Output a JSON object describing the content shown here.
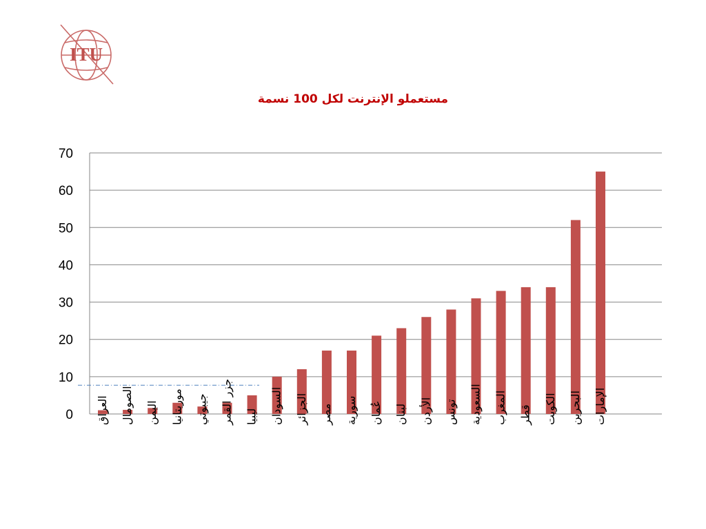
{
  "logo": {
    "text": "ITU"
  },
  "chart_data": {
    "type": "bar",
    "title": "مستعملو الإنترنت لكل 100 نسمة",
    "categories": [
      "العراق",
      "الصومال",
      "اليمن",
      "موريتانيا",
      "جيبوتي",
      "جزر القمر",
      "ليبيا",
      "السودان",
      "الجزائر",
      "مصر",
      "سورية",
      "عُمان",
      "لبنان",
      "الأردن",
      "تونس",
      "السعودية",
      "المغرب",
      "قطر",
      "الكويت",
      "البحرين",
      "الإمارات"
    ],
    "values": [
      1,
      1.1,
      1.6,
      3,
      2,
      3,
      5,
      10,
      12,
      17,
      17,
      21,
      23,
      26,
      28,
      31,
      33,
      34,
      34,
      52,
      65
    ],
    "ylim": [
      0,
      70
    ],
    "yticks": [
      0,
      10,
      20,
      30,
      40,
      50,
      60,
      70
    ],
    "xlabel": "",
    "ylabel": "",
    "grid": true,
    "reference_line": 7.7,
    "colors": {
      "bar": "#c0504d",
      "grid": "#868686",
      "reference": "#4f81bd",
      "title": "#c00000"
    }
  }
}
